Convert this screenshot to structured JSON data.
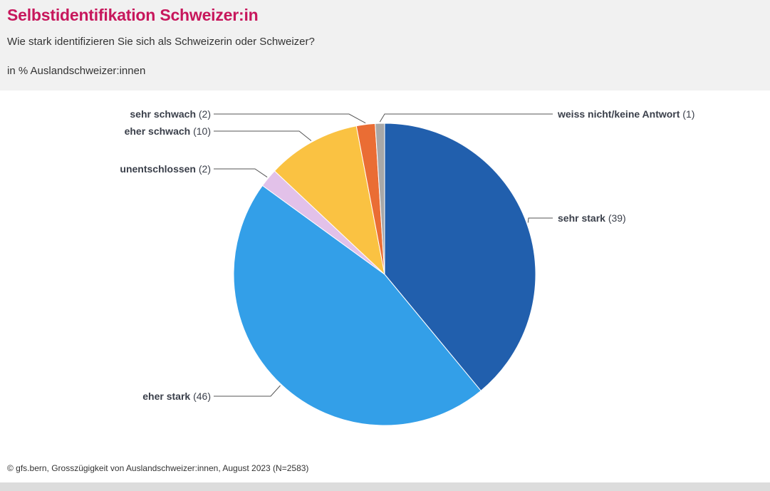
{
  "header": {
    "title": "Selbstidentifikation Schweizer:in",
    "subtitle": "Wie stark identifizieren Sie sich als Schweizerin oder Schweizer?",
    "unit": "in % Auslandschweizer:innen"
  },
  "footer": {
    "source": "© gfs.bern, Grosszügigkeit von Auslandschweizer:innen, August 2023 (N=2583)"
  },
  "chart_data": {
    "type": "pie",
    "title": "Selbstidentifikation Schweizer:in",
    "start_angle_deg": 0,
    "direction": "clockwise",
    "slices": [
      {
        "name": "sehr stark",
        "value": 39,
        "value_text": "(39)",
        "color": "#215fad"
      },
      {
        "name": "eher stark",
        "value": 46,
        "value_text": "(46)",
        "color": "#339fe8"
      },
      {
        "name": "unentschlossen",
        "value": 2,
        "value_text": "(2)",
        "color": "#e2c1e9"
      },
      {
        "name": "eher schwach",
        "value": 10,
        "value_text": "(10)",
        "color": "#fac242"
      },
      {
        "name": "sehr schwach",
        "value": 2,
        "value_text": "(2)",
        "color": "#ea6d34"
      },
      {
        "name": "weiss nicht/keine Antwort",
        "value": 1,
        "value_text": "(1)",
        "color": "#a8a8a8"
      }
    ]
  }
}
